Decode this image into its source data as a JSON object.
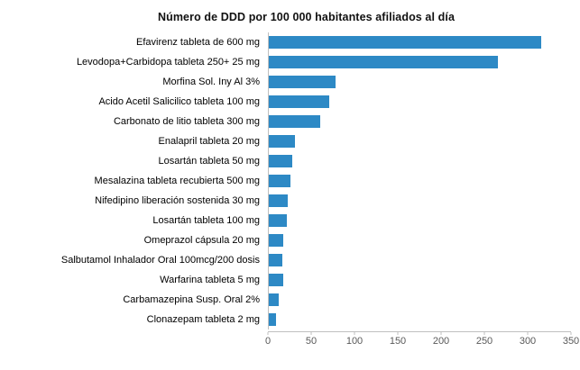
{
  "chart_data": {
    "type": "bar",
    "orientation": "horizontal",
    "title": "Número de DDD por 100 000 habitantes afiliados al día",
    "categories": [
      "Efavirenz tableta de 600 mg",
      "Levodopa+Carbidopa tableta 250+ 25 mg",
      "Morfina Sol. Iny Al 3%",
      "Acido Acetil Salicilico tableta 100 mg",
      "Carbonato de litio tableta 300 mg",
      "Enalapril tableta 20 mg",
      "Losartán tableta 50 mg",
      "Mesalazina tableta recubierta 500 mg",
      "Nifedipino liberación sostenida 30 mg",
      "Losartán tableta 100 mg",
      "Omeprazol cápsula 20 mg",
      "Salbutamol Inhalador Oral 100mcg/200 dosis",
      "Warfarina tableta 5 mg",
      "Carbamazepina Susp. Oral 2%",
      "Clonazepam tableta 2 mg"
    ],
    "values": [
      315,
      265,
      77,
      70,
      60,
      30,
      27,
      25,
      22,
      21,
      17,
      16,
      17,
      12,
      8
    ],
    "xlabel": "",
    "ylabel": "",
    "xlim": [
      0,
      350
    ],
    "xticks": [
      0,
      50,
      100,
      150,
      200,
      250,
      300,
      350
    ],
    "grid": false,
    "legend": false,
    "bar_color": "#2d89c5"
  }
}
